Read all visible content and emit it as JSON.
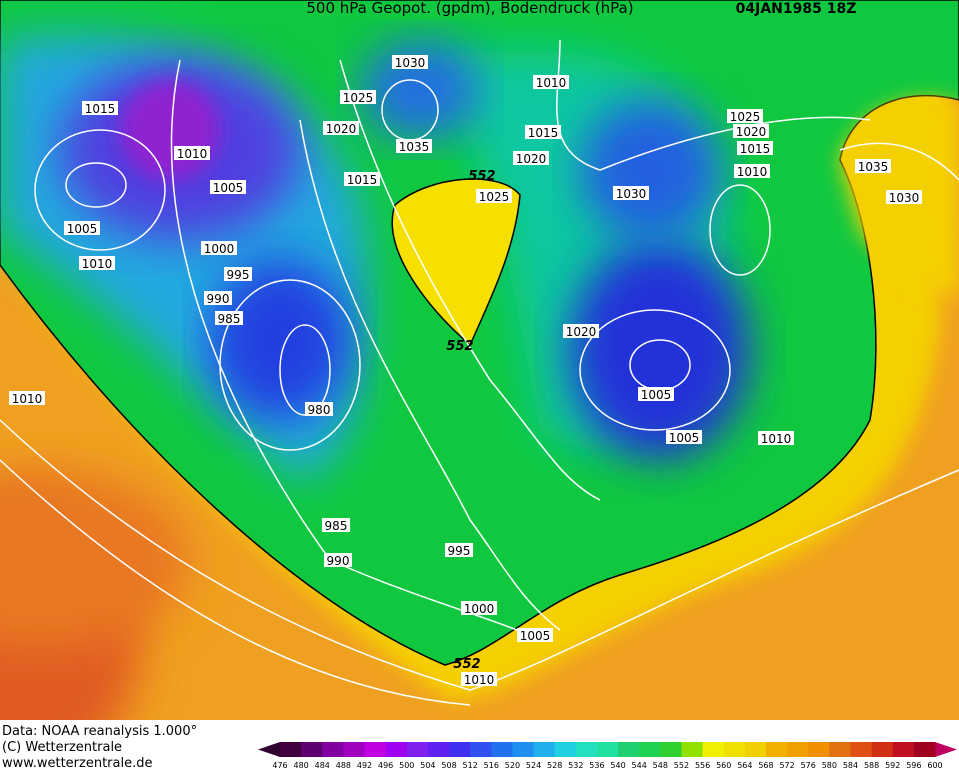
{
  "header": {
    "title": "500 hPa Geopot. (gpdm), Bodendruck (hPa)",
    "date": "04JAN1985 18Z"
  },
  "isobar_labels": [
    "1030",
    "1025",
    "1020",
    "1035",
    "1015",
    "1015",
    "1010",
    "1005",
    "1005",
    "1010",
    "1000",
    "995",
    "990",
    "985",
    "980",
    "1010",
    "1010",
    "1015",
    "1020",
    "552",
    "1025",
    "552",
    "1030",
    "1025",
    "1020",
    "1015",
    "1010",
    "1035",
    "1030",
    "1020",
    "1005",
    "1005",
    "1010",
    "985",
    "990",
    "995",
    "1000",
    "1005",
    "552",
    "1010"
  ],
  "footer": {
    "source": "Data: NOAA reanalysis 1.000°",
    "copyright": "(C) Wetterzentrale",
    "url": "www.wetterzentrale.de"
  },
  "colorbar": {
    "labels": [
      476,
      480,
      484,
      488,
      492,
      496,
      500,
      504,
      508,
      512,
      516,
      520,
      524,
      528,
      532,
      536,
      540,
      544,
      548,
      552,
      556,
      560,
      564,
      568,
      572,
      576,
      580,
      584,
      588,
      592,
      596,
      600
    ]
  }
}
